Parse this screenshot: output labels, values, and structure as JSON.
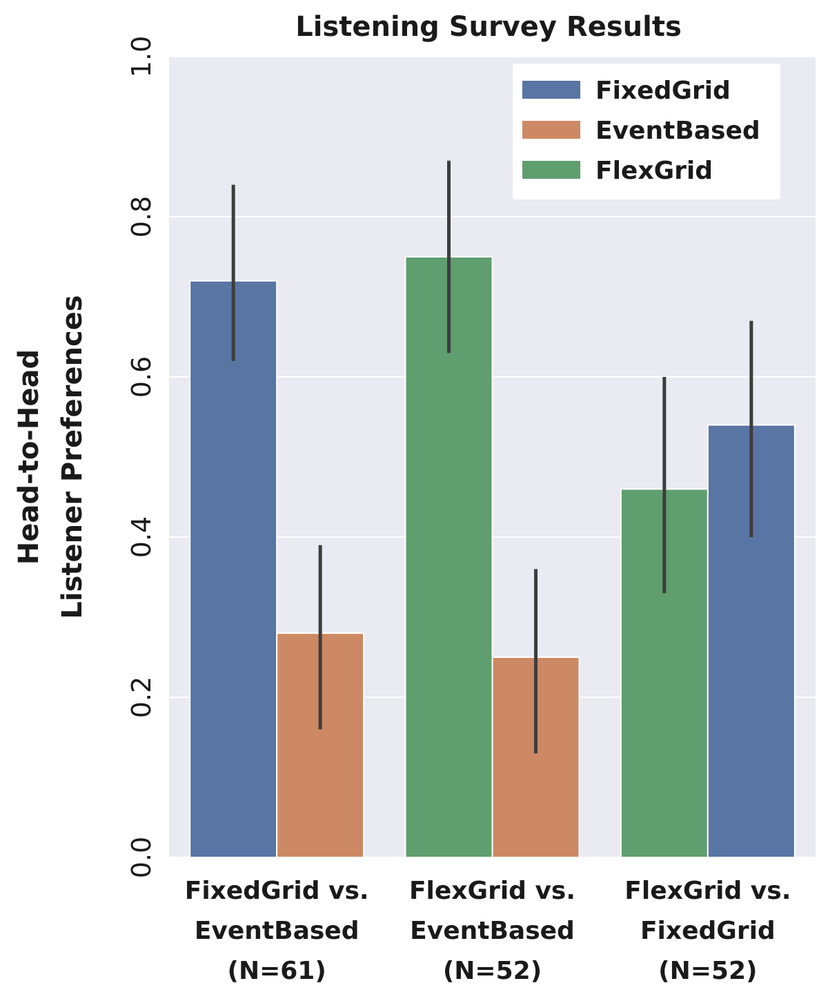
{
  "chart_data": {
    "type": "bar",
    "title": "Listening Survey Results",
    "ylabel_lines": [
      "Head-to-Head",
      "Listener Preferences"
    ],
    "xlabel": "",
    "ylim": [
      0.0,
      1.0
    ],
    "yticks": [
      "0.0",
      "0.2",
      "0.4",
      "0.6",
      "0.8",
      "1.0"
    ],
    "grid": true,
    "legend_position": "top-right",
    "legend": [
      {
        "name": "FixedGrid",
        "color": "#5875a4"
      },
      {
        "name": "EventBased",
        "color": "#cc8963"
      },
      {
        "name": "FlexGrid",
        "color": "#5f9e6e"
      }
    ],
    "groups": [
      {
        "label_lines": [
          "FixedGrid vs.",
          "EventBased",
          "(N=61)"
        ],
        "bars": [
          {
            "series": "FixedGrid",
            "value": 0.72,
            "ci": [
              0.62,
              0.84
            ]
          },
          {
            "series": "EventBased",
            "value": 0.28,
            "ci": [
              0.16,
              0.39
            ]
          }
        ]
      },
      {
        "label_lines": [
          "FlexGrid vs.",
          "EventBased",
          "(N=52)"
        ],
        "bars": [
          {
            "series": "FlexGrid",
            "value": 0.75,
            "ci": [
              0.63,
              0.87
            ]
          },
          {
            "series": "EventBased",
            "value": 0.25,
            "ci": [
              0.13,
              0.36
            ]
          }
        ]
      },
      {
        "label_lines": [
          "FlexGrid vs.",
          "FixedGrid",
          "(N=52)"
        ],
        "bars": [
          {
            "series": "FlexGrid",
            "value": 0.46,
            "ci": [
              0.33,
              0.6
            ]
          },
          {
            "series": "FixedGrid",
            "value": 0.54,
            "ci": [
              0.4,
              0.67
            ]
          }
        ]
      }
    ]
  }
}
